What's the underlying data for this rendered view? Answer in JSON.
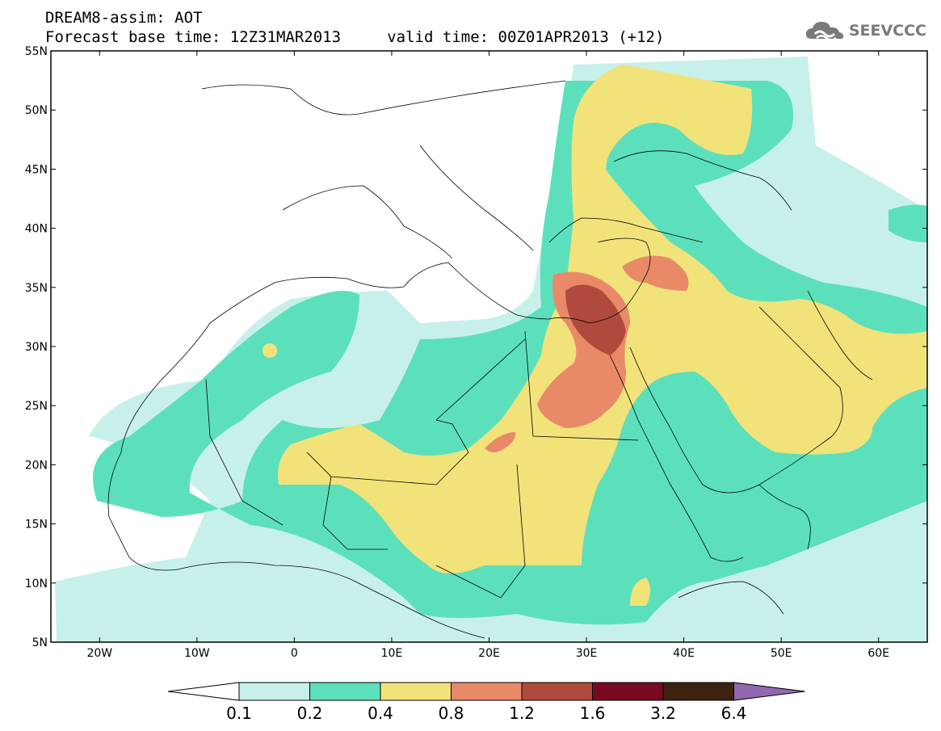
{
  "header": {
    "title_line1": "DREAM8-assim: AOT",
    "title_line2": "Forecast base time: 12Z31MAR2013     valid time: 00Z01APR2013 (+12)",
    "logo_text": "SEEVCCC"
  },
  "map": {
    "projection": "lat-lon",
    "lon_range": [
      -25,
      65
    ],
    "lat_range": [
      5,
      55
    ],
    "lon_ticks": [
      {
        "value": -20,
        "label": "20W"
      },
      {
        "value": -10,
        "label": "10W"
      },
      {
        "value": 0,
        "label": "0"
      },
      {
        "value": 10,
        "label": "10E"
      },
      {
        "value": 20,
        "label": "20E"
      },
      {
        "value": 30,
        "label": "30E"
      },
      {
        "value": 40,
        "label": "40E"
      },
      {
        "value": 50,
        "label": "50E"
      },
      {
        "value": 60,
        "label": "60E"
      }
    ],
    "lat_ticks": [
      {
        "value": 5,
        "label": "5N"
      },
      {
        "value": 10,
        "label": "10N"
      },
      {
        "value": 15,
        "label": "15N"
      },
      {
        "value": 20,
        "label": "20N"
      },
      {
        "value": 25,
        "label": "25N"
      },
      {
        "value": 30,
        "label": "30N"
      },
      {
        "value": 35,
        "label": "35N"
      },
      {
        "value": 40,
        "label": "40N"
      },
      {
        "value": 45,
        "label": "45N"
      },
      {
        "value": 50,
        "label": "50N"
      },
      {
        "value": 55,
        "label": "55N"
      }
    ]
  },
  "colorbar": {
    "boundaries": [
      "0.1",
      "0.2",
      "0.4",
      "0.8",
      "1.2",
      "1.6",
      "3.2",
      "6.4"
    ],
    "colors": [
      "#c8f0ea",
      "#5ce0bc",
      "#f2e27a",
      "#e88a68",
      "#b04a3c",
      "#7a0a22",
      "#3c2410"
    ],
    "under_color": "#ffffff",
    "over_color": "#9068b0"
  },
  "colors": {
    "aot_01_02": "#c8f0ea",
    "aot_02_04": "#5ce0bc",
    "aot_04_08": "#f2e27a",
    "aot_08_12": "#e88a68",
    "aot_12_16": "#b04a3c",
    "border": "#000000"
  }
}
